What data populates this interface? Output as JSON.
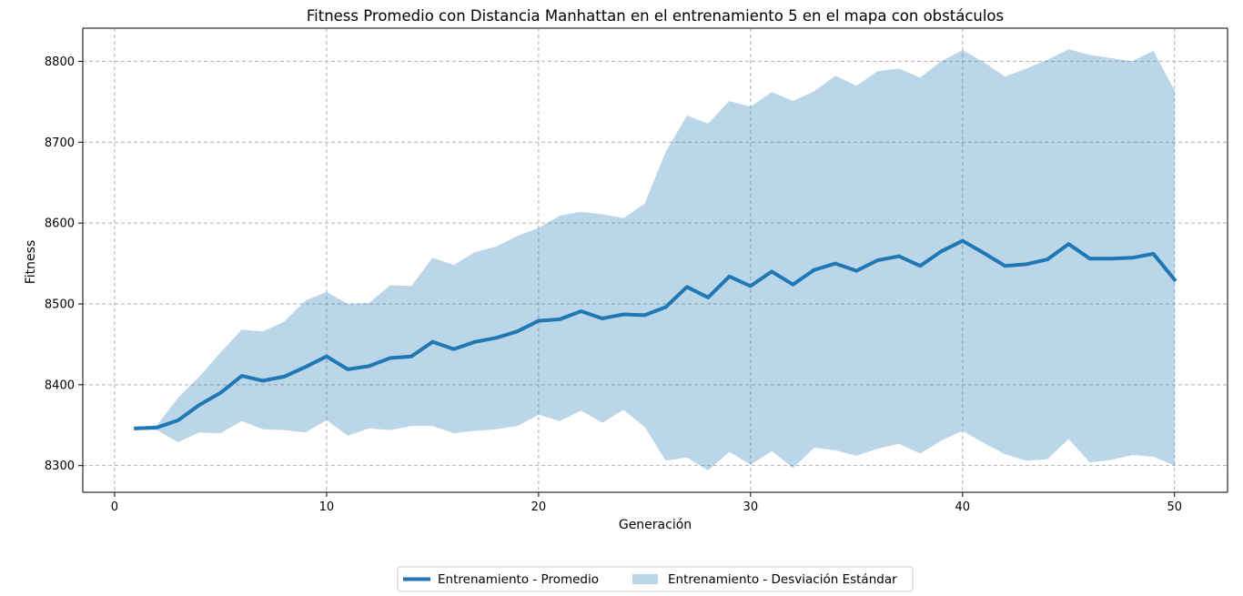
{
  "chart_data": {
    "type": "line",
    "title": "Fitness Promedio con Distancia Manhattan en el entrenamiento 5 en el mapa con obstáculos",
    "xlabel": "Generación",
    "ylabel": "Fitness",
    "xlim": [
      -1.5,
      52.5
    ],
    "ylim": [
      8267,
      8841
    ],
    "xticks": [
      0,
      10,
      20,
      30,
      40,
      50
    ],
    "yticks": [
      8300,
      8400,
      8500,
      8600,
      8700,
      8800
    ],
    "grid": true,
    "legend_position": "bottom-center",
    "x": [
      1,
      2,
      3,
      4,
      5,
      6,
      7,
      8,
      9,
      10,
      11,
      12,
      13,
      14,
      15,
      16,
      17,
      18,
      19,
      20,
      21,
      22,
      23,
      24,
      25,
      26,
      27,
      28,
      29,
      30,
      31,
      32,
      33,
      34,
      35,
      36,
      37,
      38,
      39,
      40,
      41,
      42,
      43,
      44,
      45,
      46,
      47,
      48,
      49,
      50
    ],
    "series": [
      {
        "name": "Entrenamiento  - Promedio",
        "kind": "line",
        "color": "#1f77b4",
        "values": [
          8346,
          8347,
          8356,
          8375,
          8390,
          8411,
          8405,
          8410,
          8422,
          8435,
          8419,
          8423,
          8433,
          8435,
          8453,
          8444,
          8453,
          8458,
          8466,
          8479,
          8481,
          8491,
          8482,
          8487,
          8486,
          8496,
          8521,
          8508,
          8534,
          8522,
          8540,
          8524,
          8542,
          8550,
          8541,
          8554,
          8559,
          8547,
          8565,
          8578,
          8563,
          8547,
          8549,
          8555,
          8574,
          8556,
          8556,
          8557,
          8562,
          8530
        ]
      },
      {
        "name": "Entrenamiento  - Desviación Estándar",
        "kind": "band",
        "color": "#1f77b4",
        "opacity": 0.3,
        "upper": [
          8347,
          8350,
          8384,
          8410,
          8440,
          8468,
          8466,
          8478,
          8504,
          8515,
          8500,
          8501,
          8523,
          8522,
          8557,
          8548,
          8564,
          8571,
          8584,
          8594,
          8609,
          8614,
          8611,
          8606,
          8624,
          8688,
          8733,
          8723,
          8751,
          8744,
          8762,
          8751,
          8763,
          8782,
          8770,
          8788,
          8791,
          8780,
          8800,
          8814,
          8799,
          8781,
          8791,
          8802,
          8815,
          8808,
          8804,
          8800,
          8813,
          8764
        ],
        "lower": [
          8345,
          8344,
          8329,
          8341,
          8340,
          8355,
          8345,
          8344,
          8341,
          8356,
          8337,
          8346,
          8344,
          8349,
          8349,
          8340,
          8343,
          8345,
          8349,
          8363,
          8355,
          8368,
          8353,
          8369,
          8348,
          8306,
          8310,
          8294,
          8317,
          8301,
          8318,
          8297,
          8322,
          8319,
          8312,
          8321,
          8327,
          8315,
          8331,
          8343,
          8328,
          8314,
          8306,
          8308,
          8333,
          8304,
          8307,
          8313,
          8311,
          8300
        ]
      }
    ]
  }
}
